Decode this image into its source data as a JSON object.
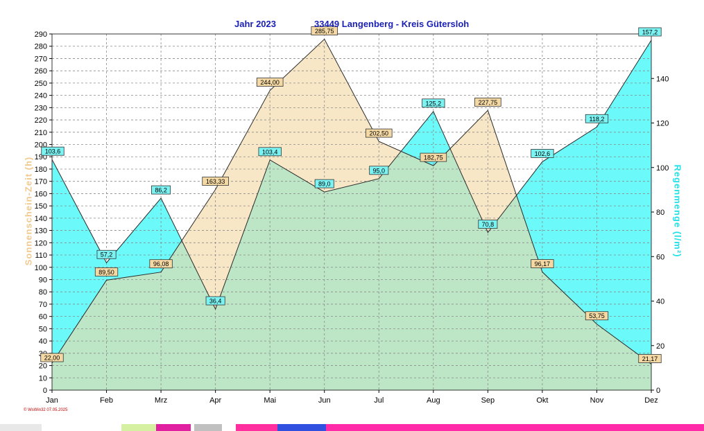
{
  "header": {
    "year_label": "Jahr  2023",
    "location": "33449 Langenberg - Kreis Gütersloh"
  },
  "footer": {
    "credit": "© WsWin32  07.05.2025"
  },
  "colors": {
    "sunshine_fill": "#f7e7c6",
    "rain_fill": "#6bf9f9",
    "overlap_fill": "#bde6c6",
    "sunshine_label": "#f5d9a4",
    "rain_label": "#7bf3f3",
    "axis_title_left": "#f0c98e",
    "axis_title_right": "#20e0e6",
    "grid": "#8a8a8a"
  },
  "chart_data": {
    "type": "area",
    "categories": [
      "Jan",
      "Feb",
      "Mrz",
      "Apr",
      "Mai",
      "Jun",
      "Jul",
      "Aug",
      "Sep",
      "Okt",
      "Nov",
      "Dez"
    ],
    "series": [
      {
        "name": "Sonnenschein-Zeit",
        "axis": "left",
        "values": [
          22.0,
          89.5,
          96.08,
          163.33,
          244.0,
          285.75,
          202.5,
          182.75,
          227.75,
          96.17,
          53.75,
          21.17
        ],
        "labels": [
          "22,00",
          "89,50",
          "96,08",
          "163,33",
          "244,00",
          "285,75",
          "202,50",
          "182,75",
          "227,75",
          "96,17",
          "53,75",
          "21,17"
        ]
      },
      {
        "name": "Regenmenge",
        "axis": "right",
        "values": [
          103.6,
          57.2,
          86.2,
          36.4,
          103.4,
          89.0,
          95.0,
          125.2,
          70.8,
          102.6,
          118.2,
          157.2
        ],
        "labels": [
          "103,6",
          "57,2",
          "86,2",
          "36,4",
          "103,4",
          "89,0",
          "95,0",
          "125,2",
          "70,8",
          "102,6",
          "118,2",
          "157,2"
        ]
      }
    ],
    "ylabel": "Sonnenschein-Zeit  (h)",
    "y2label": "Regenmenge  (l/m²)",
    "ylim": [
      0,
      290
    ],
    "y2lim": [
      0,
      160
    ],
    "yticks": [
      0,
      10,
      20,
      30,
      40,
      50,
      60,
      70,
      80,
      90,
      100,
      110,
      120,
      130,
      140,
      150,
      160,
      170,
      180,
      190,
      200,
      210,
      220,
      230,
      240,
      250,
      260,
      270,
      280,
      290
    ],
    "y2ticks": [
      0,
      20,
      40,
      60,
      80,
      100,
      120,
      140
    ],
    "grid": true
  }
}
